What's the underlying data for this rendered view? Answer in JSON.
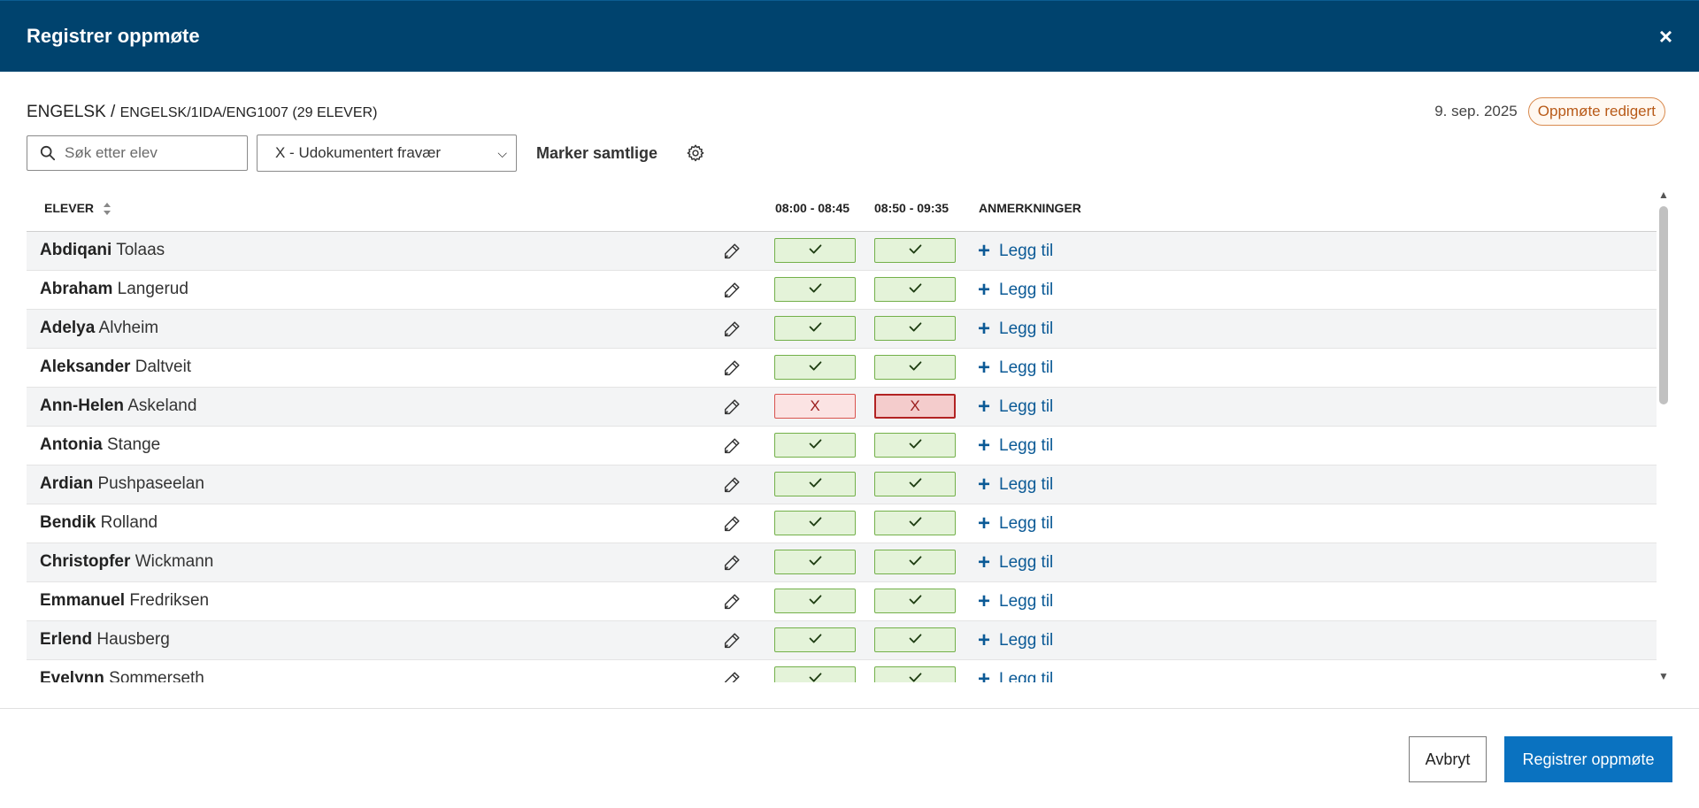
{
  "header": {
    "title": "Registrer oppmøte",
    "close_label": "×"
  },
  "meta": {
    "course_prefix": "ENGELSK / ",
    "course_path": "ENGELSK/1IDA/ENG1007 (29 ELEVER)",
    "date": "9. sep. 2025",
    "badge": "Oppmøte redigert"
  },
  "toolbar": {
    "search_placeholder": "Søk etter elev",
    "absence_type": "X - Udokumentert fravær",
    "mark_all": "Marker samtlige"
  },
  "table": {
    "col_students": "ELEVER",
    "periods": [
      "08:00 - 08:45",
      "08:50 - 09:35"
    ],
    "col_notes": "ANMERKNINGER",
    "add_note_label": "Legg til",
    "absent_mark": "X",
    "rows": [
      {
        "first": "Abdiqani",
        "last": "Tolaas",
        "p1": "present",
        "p2": "present"
      },
      {
        "first": "Abraham",
        "last": "Langerud",
        "p1": "present",
        "p2": "present"
      },
      {
        "first": "Adelya",
        "last": "Alvheim",
        "p1": "present",
        "p2": "present"
      },
      {
        "first": "Aleksander",
        "last": "Daltveit",
        "p1": "present",
        "p2": "present"
      },
      {
        "first": "Ann-Helen",
        "last": "Askeland",
        "p1": "absent",
        "p2": "absent-selected"
      },
      {
        "first": "Antonia",
        "last": "Stange",
        "p1": "present",
        "p2": "present"
      },
      {
        "first": "Ardian",
        "last": "Pushpaseelan",
        "p1": "present",
        "p2": "present"
      },
      {
        "first": "Bendik",
        "last": "Rolland",
        "p1": "present",
        "p2": "present"
      },
      {
        "first": "Christopfer",
        "last": "Wickmann",
        "p1": "present",
        "p2": "present"
      },
      {
        "first": "Emmanuel",
        "last": "Fredriksen",
        "p1": "present",
        "p2": "present"
      },
      {
        "first": "Erlend",
        "last": "Hausberg",
        "p1": "present",
        "p2": "present"
      },
      {
        "first": "Evelynn",
        "last": "Sommerseth",
        "p1": "present",
        "p2": "present"
      }
    ]
  },
  "footer": {
    "cancel": "Avbryt",
    "submit": "Registrer oppmøte"
  },
  "colors": {
    "header_bg": "#00436e",
    "primary": "#0a72c0",
    "present_bg": "#e4f3d9",
    "absent_bg": "#fbe3e3",
    "badge": "#b85a18"
  },
  "icons": {
    "search": "search-icon",
    "gear": "gear-icon",
    "pen": "pen-icon",
    "check": "check-icon",
    "sort": "sort-icon",
    "close": "close-icon"
  }
}
